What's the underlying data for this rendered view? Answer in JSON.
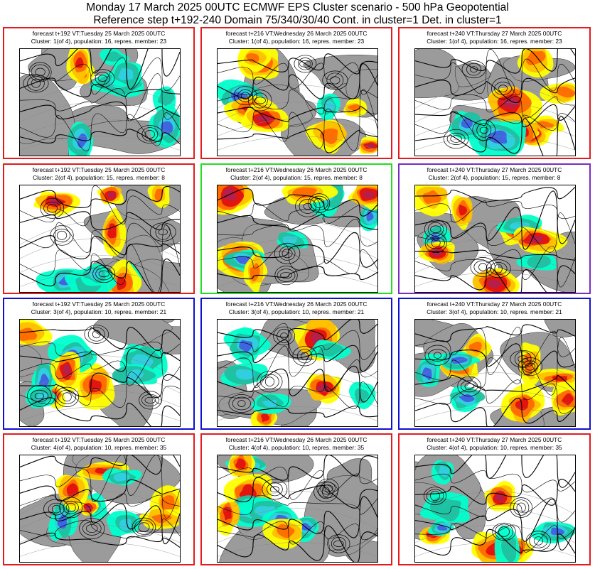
{
  "header": {
    "line1": "Monday 17 March 2025 00UTC ECMWF EPS Cluster scenario - 500 hPa Geopotential",
    "line2": "Reference step t+192-240 Domain 75/340/30/40 Cont. in cluster=1 Det. in cluster=1"
  },
  "colors": {
    "red_frame": "#e41a1c",
    "green_frame": "#22dd22",
    "purple_frame": "#7b2cbf",
    "blue_frame": "#1010d0",
    "land": "#9b9b9b",
    "sea": "#ffffff",
    "anomaly_pos": [
      "#ffff00",
      "#ffbf00",
      "#ff6a00",
      "#e01010",
      "#b2204d",
      "#7a0a2e"
    ],
    "anomaly_neg": [
      "#00ffcc",
      "#20c0a0",
      "#30d0e0",
      "#4060e0",
      "#2020b0"
    ]
  },
  "panels": [
    {
      "line1": "forecast t+192 VT:Tuesday 25 March 2025 00UTC",
      "line2": "Cluster: 1(of 4), population: 16, repres. member: 23",
      "frame": "red"
    },
    {
      "line1": "forecast t+216 VT:Wednesday 26 March 2025 00UTC",
      "line2": "Cluster: 1(of 4), population: 16, repres. member: 23",
      "frame": "red"
    },
    {
      "line1": "forecast t+240 VT:Thursday 27 March 2025 00UTC",
      "line2": "Cluster: 1(of 4), population: 16, repres. member: 23",
      "frame": "red"
    },
    {
      "line1": "forecast t+192 VT:Tuesday 25 March 2025 00UTC",
      "line2": "Cluster: 2(of 4), population: 15, repres. member: 8",
      "frame": "red"
    },
    {
      "line1": "forecast t+216 VT:Wednesday 26 March 2025 00UTC",
      "line2": "Cluster: 2(of 4), population: 15, repres. member: 8",
      "frame": "green"
    },
    {
      "line1": "forecast t+240 VT:Thursday 27 March 2025 00UTC",
      "line2": "Cluster: 2(of 4), population: 15, repres. member: 8",
      "frame": "purple"
    },
    {
      "line1": "forecast t+192 VT:Tuesday 25 March 2025 00UTC",
      "line2": "Cluster: 3(of 4), population: 10, repres. member: 21",
      "frame": "blue"
    },
    {
      "line1": "forecast t+216 VT:Wednesday 26 March 2025 00UTC",
      "line2": "Cluster: 3(of 4), population: 10, repres. member: 21",
      "frame": "blue"
    },
    {
      "line1": "forecast t+240 VT:Thursday 27 March 2025 00UTC",
      "line2": "Cluster: 3(of 4), population: 10, repres. member: 21",
      "frame": "blue"
    },
    {
      "line1": "forecast t+192 VT:Tuesday 25 March 2025 00UTC",
      "line2": "Cluster: 4(of 4), population: 10, repres. member: 35",
      "frame": "red"
    },
    {
      "line1": "forecast t+216 VT:Wednesday 26 March 2025 00UTC",
      "line2": "Cluster: 4(of 4), population: 10, repres. member: 35",
      "frame": "red"
    },
    {
      "line1": "forecast t+240 VT:Thursday 27 March 2025 00UTC",
      "line2": "Cluster: 4(of 4), population: 10, repres. member: 35",
      "frame": "red"
    }
  ]
}
